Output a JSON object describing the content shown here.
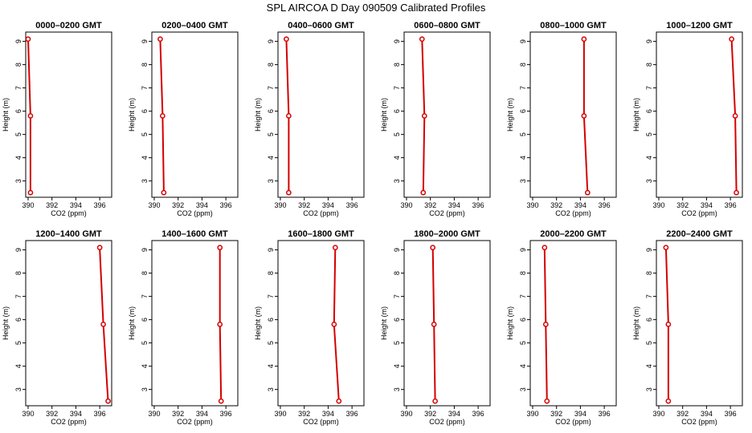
{
  "figure": {
    "title": "SPL AIRCOA D  Day 090509  Calibrated Profiles"
  },
  "colors": {
    "profile": "#d40000",
    "axis": "#000000"
  },
  "chart_data": [
    {
      "type": "line",
      "title": "0000–0200 GMT",
      "xlabel": "CO2 (ppm)",
      "ylabel": "Height (m)",
      "xlim": [
        389.8,
        397
      ],
      "ylim": [
        2.3,
        9.4
      ],
      "xticks": [
        390,
        392,
        394,
        396
      ],
      "yticks": [
        3,
        4,
        5,
        6,
        7,
        8,
        9
      ],
      "grid": false,
      "series": [
        {
          "x": [
            390.2,
            390.2,
            390.0
          ],
          "y": [
            2.5,
            5.8,
            9.1
          ]
        }
      ]
    },
    {
      "type": "line",
      "title": "0200–0400 GMT",
      "xlabel": "CO2 (ppm)",
      "ylabel": "Height (m)",
      "xlim": [
        389.8,
        397
      ],
      "ylim": [
        2.3,
        9.4
      ],
      "xticks": [
        390,
        392,
        394,
        396
      ],
      "yticks": [
        3,
        4,
        5,
        6,
        7,
        8,
        9
      ],
      "grid": false,
      "series": [
        {
          "x": [
            390.8,
            390.7,
            390.5
          ],
          "y": [
            2.5,
            5.8,
            9.1
          ]
        }
      ]
    },
    {
      "type": "line",
      "title": "0400–0600 GMT",
      "xlabel": "CO2 (ppm)",
      "ylabel": "Height (m)",
      "xlim": [
        389.8,
        397
      ],
      "ylim": [
        2.3,
        9.4
      ],
      "xticks": [
        390,
        392,
        394,
        396
      ],
      "yticks": [
        3,
        4,
        5,
        6,
        7,
        8,
        9
      ],
      "grid": false,
      "series": [
        {
          "x": [
            390.7,
            390.7,
            390.5
          ],
          "y": [
            2.5,
            5.8,
            9.1
          ]
        }
      ]
    },
    {
      "type": "line",
      "title": "0600–0800 GMT",
      "xlabel": "CO2 (ppm)",
      "ylabel": "Height (m)",
      "xlim": [
        389.8,
        397
      ],
      "ylim": [
        2.3,
        9.4
      ],
      "xticks": [
        390,
        392,
        394,
        396
      ],
      "yticks": [
        3,
        4,
        5,
        6,
        7,
        8,
        9
      ],
      "grid": false,
      "series": [
        {
          "x": [
            391.4,
            391.5,
            391.3
          ],
          "y": [
            2.5,
            5.8,
            9.1
          ]
        }
      ]
    },
    {
      "type": "line",
      "title": "0800–1000 GMT",
      "xlabel": "CO2 (ppm)",
      "ylabel": "Height (m)",
      "xlim": [
        389.8,
        397
      ],
      "ylim": [
        2.3,
        9.4
      ],
      "xticks": [
        390,
        392,
        394,
        396
      ],
      "yticks": [
        3,
        4,
        5,
        6,
        7,
        8,
        9
      ],
      "grid": false,
      "series": [
        {
          "x": [
            394.6,
            394.3,
            394.3
          ],
          "y": [
            2.5,
            5.8,
            9.1
          ]
        }
      ]
    },
    {
      "type": "line",
      "title": "1000–1200 GMT",
      "xlabel": "CO2 (ppm)",
      "ylabel": "Height (m)",
      "xlim": [
        389.8,
        397
      ],
      "ylim": [
        2.3,
        9.4
      ],
      "xticks": [
        390,
        392,
        394,
        396
      ],
      "yticks": [
        3,
        4,
        5,
        6,
        7,
        8,
        9
      ],
      "grid": false,
      "series": [
        {
          "x": [
            396.5,
            396.4,
            396.1
          ],
          "y": [
            2.5,
            5.8,
            9.1
          ]
        }
      ]
    },
    {
      "type": "line",
      "title": "1200–1400 GMT",
      "xlabel": "CO2 (ppm)",
      "ylabel": "Height (m)",
      "xlim": [
        389.8,
        397
      ],
      "ylim": [
        2.3,
        9.4
      ],
      "xticks": [
        390,
        392,
        394,
        396
      ],
      "yticks": [
        3,
        4,
        5,
        6,
        7,
        8,
        9
      ],
      "grid": false,
      "series": [
        {
          "x": [
            396.7,
            396.3,
            396.0
          ],
          "y": [
            2.5,
            5.8,
            9.1
          ]
        }
      ]
    },
    {
      "type": "line",
      "title": "1400–1600 GMT",
      "xlabel": "CO2 (ppm)",
      "ylabel": "Height (m)",
      "xlim": [
        389.8,
        397
      ],
      "ylim": [
        2.3,
        9.4
      ],
      "xticks": [
        390,
        392,
        394,
        396
      ],
      "yticks": [
        3,
        4,
        5,
        6,
        7,
        8,
        9
      ],
      "grid": false,
      "series": [
        {
          "x": [
            395.6,
            395.5,
            395.5
          ],
          "y": [
            2.5,
            5.8,
            9.1
          ]
        }
      ]
    },
    {
      "type": "line",
      "title": "1600–1800 GMT",
      "xlabel": "CO2 (ppm)",
      "ylabel": "Height (m)",
      "xlim": [
        389.8,
        397
      ],
      "ylim": [
        2.3,
        9.4
      ],
      "xticks": [
        390,
        392,
        394,
        396
      ],
      "yticks": [
        3,
        4,
        5,
        6,
        7,
        8,
        9
      ],
      "grid": false,
      "series": [
        {
          "x": [
            394.9,
            394.5,
            394.6
          ],
          "y": [
            2.5,
            5.8,
            9.1
          ]
        }
      ]
    },
    {
      "type": "line",
      "title": "1800–2000 GMT",
      "xlabel": "CO2 (ppm)",
      "ylabel": "Height (m)",
      "xlim": [
        389.8,
        397
      ],
      "ylim": [
        2.3,
        9.4
      ],
      "xticks": [
        390,
        392,
        394,
        396
      ],
      "yticks": [
        3,
        4,
        5,
        6,
        7,
        8,
        9
      ],
      "grid": false,
      "series": [
        {
          "x": [
            392.4,
            392.3,
            392.2
          ],
          "y": [
            2.5,
            5.8,
            9.1
          ]
        }
      ]
    },
    {
      "type": "line",
      "title": "2000–2200 GMT",
      "xlabel": "CO2 (ppm)",
      "ylabel": "Height (m)",
      "xlim": [
        389.8,
        397
      ],
      "ylim": [
        2.3,
        9.4
      ],
      "xticks": [
        390,
        392,
        394,
        396
      ],
      "yticks": [
        3,
        4,
        5,
        6,
        7,
        8,
        9
      ],
      "grid": false,
      "series": [
        {
          "x": [
            391.2,
            391.1,
            391.0
          ],
          "y": [
            2.5,
            5.8,
            9.1
          ]
        }
      ]
    },
    {
      "type": "line",
      "title": "2200–2400 GMT",
      "xlabel": "CO2 (ppm)",
      "ylabel": "Height (m)",
      "xlim": [
        389.8,
        397
      ],
      "ylim": [
        2.3,
        9.4
      ],
      "xticks": [
        390,
        392,
        394,
        396
      ],
      "yticks": [
        3,
        4,
        5,
        6,
        7,
        8,
        9
      ],
      "grid": false,
      "series": [
        {
          "x": [
            390.8,
            390.8,
            390.6
          ],
          "y": [
            2.5,
            5.8,
            9.1
          ]
        }
      ]
    }
  ]
}
